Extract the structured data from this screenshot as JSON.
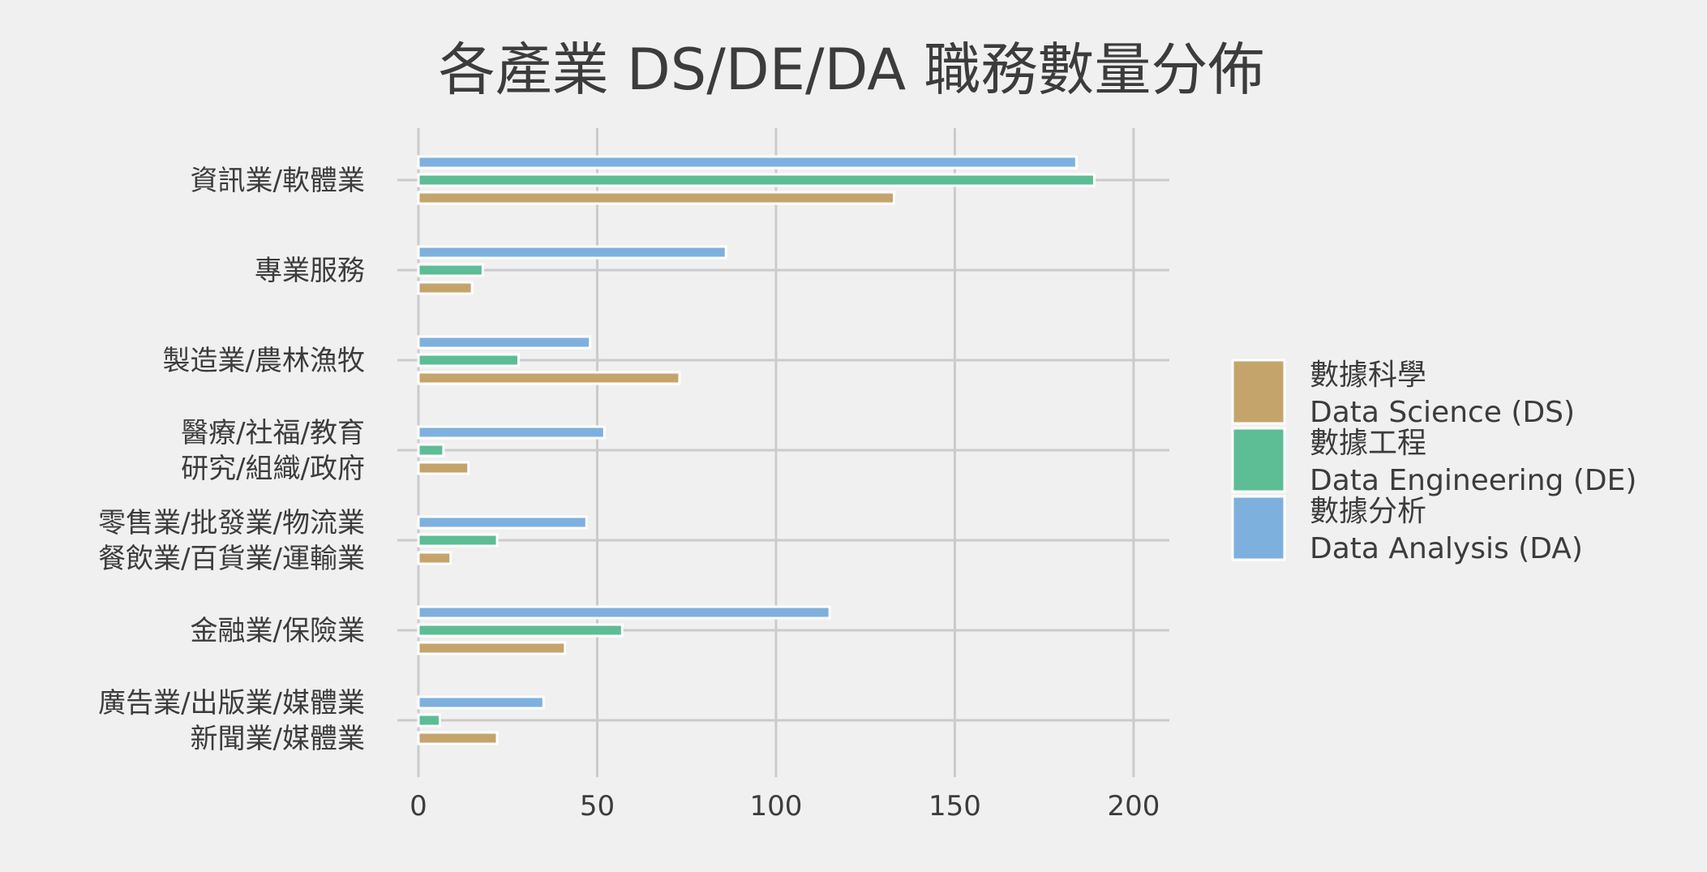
{
  "chart_data": {
    "type": "bar",
    "orientation": "horizontal",
    "title": "各產業 DS/DE/DA 職務數量分佈",
    "xlabel": "",
    "ylabel": "",
    "xlim": [
      0,
      210
    ],
    "xticks": [
      "0",
      "50",
      "100",
      "150",
      "200"
    ],
    "grid": true,
    "legend_position": "right",
    "categories": [
      [
        "資訊業/軟體業"
      ],
      [
        "專業服務"
      ],
      [
        "製造業/農林漁牧"
      ],
      [
        "醫療/社福/教育",
        "研究/組織/政府"
      ],
      [
        "零售業/批發業/物流業",
        "餐飲業/百貨業/運輸業"
      ],
      [
        "金融業/保險業"
      ],
      [
        "廣告業/出版業/媒體業",
        "新聞業/媒體業"
      ]
    ],
    "series": [
      {
        "name": [
          "數據科學",
          "Data Science (DS)"
        ],
        "color": "#c5a46c",
        "values": [
          133,
          15,
          73,
          14,
          9,
          41,
          22
        ]
      },
      {
        "name": [
          "數據工程",
          "Data Engineering (DE)"
        ],
        "color": "#5dbd95",
        "values": [
          189,
          18,
          28,
          7,
          22,
          57,
          6
        ]
      },
      {
        "name": [
          "數據分析",
          "Data Analysis (DA)"
        ],
        "color": "#7eb0de",
        "values": [
          184,
          86,
          48,
          52,
          47,
          115,
          35
        ]
      }
    ]
  }
}
